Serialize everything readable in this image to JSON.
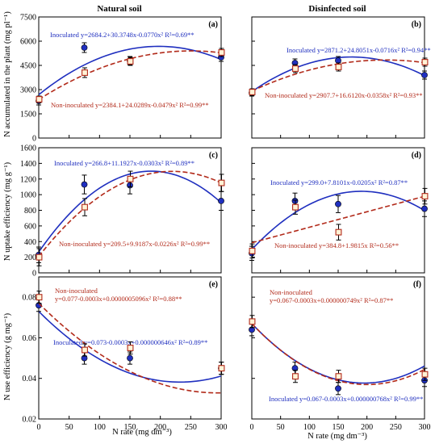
{
  "figure": {
    "col_titles": [
      "Natural soil",
      "Disinfected soil"
    ],
    "xlabel": "N rate (mg dm⁻³)",
    "colors": {
      "inoculated": "#1f2fbf",
      "non_inoculated": "#b22a1a",
      "box": "#ffffff"
    }
  },
  "chart_data": [
    {
      "id": "a",
      "type": "scatter",
      "title": "",
      "ylabel": "N accumulated in the plant (mg pl⁻¹)",
      "xlabel": "",
      "xlim": [
        0,
        300
      ],
      "ylim": [
        0,
        7500
      ],
      "yticks": [
        0,
        1500,
        3000,
        4500,
        6000,
        7500
      ],
      "xticks": [
        0,
        50,
        100,
        150,
        200,
        250,
        300
      ],
      "x": [
        0,
        75,
        150,
        300
      ],
      "series": [
        {
          "name": "Inoculated",
          "values": [
            2300,
            5600,
            4800,
            5000
          ],
          "errors": [
            250,
            300,
            250,
            250
          ],
          "coef": [
            2684.2,
            30.3748,
            -0.077
          ],
          "equation": "Inoculated y=2684.2+30.3748x-0.0770x² R²=0.69**"
        },
        {
          "name": "Non-inoculated",
          "values": [
            2400,
            4050,
            4750,
            5300
          ],
          "errors": [
            200,
            300,
            250,
            250
          ],
          "coef": [
            2384.1,
            24.0289,
            -0.0479
          ],
          "equation": "Non-inoculated y=2384.1+24.0289x-0.0479x² R²=0.99**"
        }
      ]
    },
    {
      "id": "b",
      "type": "scatter",
      "title": "",
      "ylabel": "",
      "xlabel": "",
      "xlim": [
        0,
        300
      ],
      "ylim": [
        0,
        7500
      ],
      "yticks": [
        0,
        1500,
        3000,
        4500,
        6000,
        7500
      ],
      "xticks": [
        0,
        50,
        100,
        150,
        200,
        250,
        300
      ],
      "x": [
        0,
        75,
        150,
        300
      ],
      "series": [
        {
          "name": "Inoculated",
          "values": [
            2800,
            4650,
            4800,
            3900
          ],
          "errors": [
            200,
            250,
            250,
            250
          ],
          "coef": [
            2871.2,
            24.8051,
            -0.0716
          ],
          "equation": "Inoculated y=2871.2+24.8051x-0.0716x² R²=0.94**"
        },
        {
          "name": "Non-inoculated",
          "values": [
            2850,
            4300,
            4400,
            4700
          ],
          "errors": [
            200,
            250,
            250,
            250
          ],
          "coef": [
            2907.7,
            16.612,
            -0.0358
          ],
          "equation": "Non-inoculated y=2907.7+16.6120x-0.0358x² R²=0.93**"
        }
      ]
    },
    {
      "id": "c",
      "type": "scatter",
      "title": "",
      "ylabel": "N uptake efficiency (mg g⁻¹)",
      "xlabel": "",
      "xlim": [
        0,
        300
      ],
      "ylim": [
        0,
        1600
      ],
      "yticks": [
        0,
        200,
        400,
        600,
        800,
        1000,
        1200,
        1400,
        1600
      ],
      "xticks": [
        0,
        50,
        100,
        150,
        200,
        250,
        300
      ],
      "x": [
        0,
        75,
        150,
        300
      ],
      "series": [
        {
          "name": "Inoculated",
          "values": [
            230,
            1130,
            1120,
            920
          ],
          "errors": [
            100,
            120,
            110,
            120
          ],
          "coef": [
            266.8,
            11.1927,
            -0.0303
          ],
          "equation": "Inoculated y=266.8+11.1927x-0.0303x² R²=0.89**"
        },
        {
          "name": "Non-inoculated",
          "values": [
            200,
            840,
            1200,
            1150
          ],
          "errors": [
            110,
            110,
            100,
            110
          ],
          "coef": [
            209.5,
            9.9187,
            -0.0226
          ],
          "equation": "Non-inoculated y=209.5+9.9187x-0.0226x² R²=0.99**"
        }
      ]
    },
    {
      "id": "d",
      "type": "scatter",
      "title": "",
      "ylabel": "",
      "xlabel": "",
      "xlim": [
        0,
        300
      ],
      "ylim": [
        0,
        1600
      ],
      "yticks": [
        0,
        200,
        400,
        600,
        800,
        1000,
        1200,
        1400,
        1600
      ],
      "xticks": [
        0,
        50,
        100,
        150,
        200,
        250,
        300
      ],
      "x": [
        0,
        75,
        150,
        300
      ],
      "series": [
        {
          "name": "Inoculated",
          "values": [
            250,
            920,
            880,
            820
          ],
          "errors": [
            90,
            100,
            110,
            100
          ],
          "coef": [
            299.0,
            7.8101,
            -0.0205
          ],
          "equation": "Inoculated y=299.0+7.8101x-0.0205x² R²=0.87**"
        },
        {
          "name": "Non-inoculated",
          "values": [
            280,
            840,
            520,
            980
          ],
          "errors": [
            90,
            90,
            100,
            100
          ],
          "coef": [
            384.8,
            1.9815,
            0
          ],
          "equation": "Non-inoculated y=384.8+1.9815x R²=0.56**"
        }
      ]
    },
    {
      "id": "e",
      "type": "scatter",
      "title": "",
      "ylabel": "N use efficiency (g mg⁻¹)",
      "xlabel": "N rate (mg dm⁻³)",
      "xlim": [
        0,
        300
      ],
      "ylim": [
        0.02,
        0.09
      ],
      "yticks": [
        0.02,
        0.04,
        0.06,
        0.08
      ],
      "xticks": [
        0,
        50,
        100,
        150,
        200,
        250,
        300
      ],
      "x": [
        0,
        75,
        150,
        300
      ],
      "series": [
        {
          "name": "Inoculated",
          "values": [
            0.076,
            0.05,
            0.05,
            0.045
          ],
          "errors": [
            0.003,
            0.003,
            0.003,
            0.003
          ],
          "coef": [
            0.073,
            -0.0003,
            6.46e-07
          ],
          "equation": "Inoculated y=0.073-0.0003x+0.000000646x² R²=0.89**"
        },
        {
          "name": "Non-inoculated",
          "values": [
            0.08,
            0.054,
            0.055,
            0.045
          ],
          "errors": [
            0.003,
            0.003,
            0.003,
            0.003
          ],
          "coef": [
            0.077,
            -0.0003,
            5.096e-07
          ],
          "equation": "Non-inoculated y=0.077-0.0003x+0.0000005096x² R²=0.88**",
          "equation_lines": [
            "Non-inoculated",
            "y=0.077-0.0003x+0.0000005096x² R²=0.88**"
          ]
        }
      ]
    },
    {
      "id": "f",
      "type": "scatter",
      "title": "",
      "ylabel": "",
      "xlabel": "N rate (mg dm⁻³)",
      "xlim": [
        0,
        300
      ],
      "ylim": [
        0.02,
        0.09
      ],
      "yticks": [
        0.02,
        0.04,
        0.06,
        0.08
      ],
      "xticks": [
        0,
        50,
        100,
        150,
        200,
        250,
        300
      ],
      "x": [
        0,
        75,
        150,
        300
      ],
      "series": [
        {
          "name": "Inoculated",
          "values": [
            0.064,
            0.045,
            0.035,
            0.039
          ],
          "errors": [
            0.003,
            0.003,
            0.003,
            0.003
          ],
          "coef": [
            0.067,
            -0.0003,
            7.68e-07
          ],
          "equation": "Inoculated y=0.067-0.0003x+0.000000768x² R²=0.99**"
        },
        {
          "name": "Non-inoculated",
          "values": [
            0.068,
            0.041,
            0.041,
            0.042
          ],
          "errors": [
            0.003,
            0.003,
            0.003,
            0.003
          ],
          "coef": [
            0.067,
            -0.0003,
            7.49e-07
          ],
          "equation": "Non-inoculated y=0.067-0.0003x+0.000000749x² R²=0.87**",
          "equation_lines": [
            "Non-inoculated",
            "y=0.067-0.0003x+0.000000749x² R²=0.87**"
          ]
        }
      ]
    }
  ]
}
